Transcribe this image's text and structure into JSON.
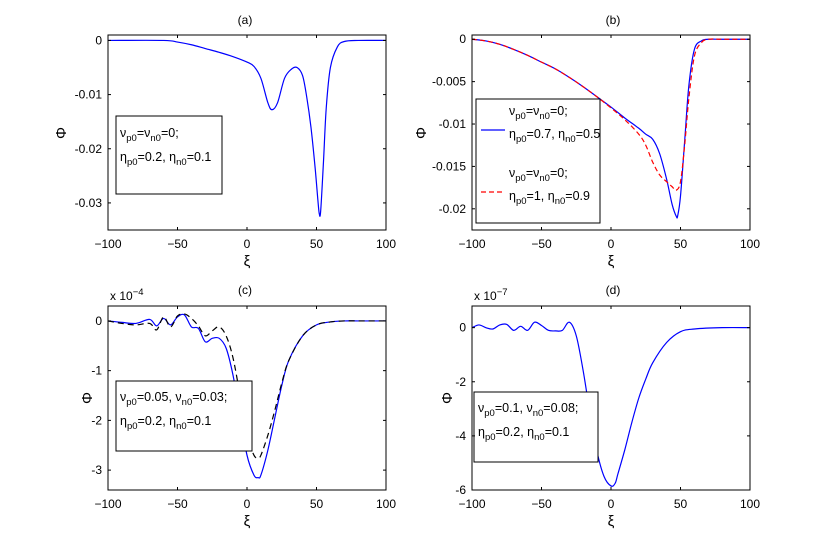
{
  "chart_data": [
    {
      "type": "line",
      "title": "(a)",
      "xlabel": "ξ",
      "ylabel": "Φ",
      "exponent": null,
      "xlim": [
        -100,
        100
      ],
      "ylim": [
        -0.035,
        0.001
      ],
      "xticks": [
        -100,
        -50,
        0,
        50,
        100
      ],
      "xtick_labels": [
        "−100",
        "−50",
        "0",
        "50",
        "100"
      ],
      "yticks": [
        0,
        -0.01,
        -0.02,
        -0.03
      ],
      "ytick_labels": [
        "0",
        "-0.01",
        "-0.02",
        "-0.03"
      ],
      "grid": false,
      "legend": {
        "placement": "left",
        "groups": [
          {
            "color": "",
            "dash": "",
            "lines": [
              [
                "ν",
                "p0",
                "=ν",
                "n0",
                "=0;"
              ],
              [
                "η",
                "p0",
                "=0.2, η",
                "n0",
                "=0.1"
              ]
            ]
          }
        ]
      },
      "series": [
        {
          "color": "#0000ff",
          "dash": "",
          "x": [
            -100,
            -60,
            -50,
            -40,
            -30,
            -20,
            -10,
            0,
            5,
            10,
            15,
            18,
            22,
            27,
            32,
            36,
            40,
            43,
            46,
            49,
            51,
            52,
            53,
            55,
            57,
            60,
            65,
            70,
            80,
            100
          ],
          "y": [
            0,
            0,
            -0.0003,
            -0.0008,
            -0.0015,
            -0.0022,
            -0.003,
            -0.004,
            -0.0048,
            -0.007,
            -0.0115,
            -0.0128,
            -0.0115,
            -0.007,
            -0.0053,
            -0.005,
            -0.0065,
            -0.0105,
            -0.016,
            -0.0235,
            -0.0295,
            -0.032,
            -0.0315,
            -0.0225,
            -0.0125,
            -0.005,
            -0.0012,
            -0.0002,
            0,
            0
          ]
        }
      ]
    },
    {
      "type": "line",
      "title": "(b)",
      "xlabel": "ξ",
      "ylabel": "Φ",
      "exponent": null,
      "xlim": [
        -100,
        100
      ],
      "ylim": [
        -0.0225,
        0.0005
      ],
      "xticks": [
        -100,
        -50,
        0,
        50,
        100
      ],
      "xtick_labels": [
        "−100",
        "−50",
        "0",
        "50",
        "100"
      ],
      "yticks": [
        0,
        -0.005,
        -0.01,
        -0.015,
        -0.02
      ],
      "ytick_labels": [
        "0",
        "-0.005",
        "-0.01",
        "-0.015",
        "-0.02"
      ],
      "grid": false,
      "legend": {
        "placement": "left",
        "groups": [
          {
            "color": "#0000ff",
            "dash": "",
            "lines": [
              [
                "ν",
                "p0",
                "=ν",
                "n0",
                "=0;"
              ],
              [
                "η",
                "p0",
                "=0.7, η",
                "n0",
                "=0.5"
              ]
            ]
          },
          {
            "color": "#ff0000",
            "dash": "5,3",
            "lines": [
              [
                "ν",
                "p0",
                "=ν",
                "n0",
                "=0;"
              ],
              [
                "η",
                "p0",
                "=1, η",
                "n0",
                "=0.9"
              ]
            ]
          }
        ]
      },
      "series": [
        {
          "color": "#0000ff",
          "dash": "",
          "x": [
            -100,
            -90,
            -80,
            -70,
            -60,
            -50,
            -40,
            -30,
            -20,
            -10,
            0,
            10,
            20,
            25,
            30,
            35,
            40,
            44,
            47,
            48,
            50,
            53,
            56,
            60,
            65,
            70,
            80,
            100
          ],
          "y": [
            0,
            -0.0002,
            -0.0006,
            -0.0012,
            -0.0019,
            -0.0027,
            -0.0035,
            -0.0045,
            -0.0056,
            -0.0068,
            -0.008,
            -0.0093,
            -0.0105,
            -0.0112,
            -0.0118,
            -0.0135,
            -0.0165,
            -0.0195,
            -0.0209,
            -0.0208,
            -0.0185,
            -0.012,
            -0.0055,
            -0.0012,
            -0.0002,
            0,
            0,
            0
          ]
        },
        {
          "color": "#ff0000",
          "dash": "5,3",
          "x": [
            -100,
            -90,
            -80,
            -70,
            -60,
            -50,
            -40,
            -30,
            -20,
            -10,
            0,
            10,
            20,
            25,
            30,
            35,
            40,
            44,
            47,
            50,
            53,
            56,
            60,
            65,
            70,
            80,
            100
          ],
          "y": [
            0,
            -0.0002,
            -0.0006,
            -0.0012,
            -0.0019,
            -0.0027,
            -0.0035,
            -0.0045,
            -0.0056,
            -0.0068,
            -0.0081,
            -0.0095,
            -0.0112,
            -0.0125,
            -0.0145,
            -0.016,
            -0.0168,
            -0.0174,
            -0.0178,
            -0.0168,
            -0.0125,
            -0.007,
            -0.002,
            -0.0004,
            0,
            0,
            0
          ]
        }
      ]
    },
    {
      "type": "line",
      "title": "(c)",
      "xlabel": "ξ",
      "ylabel": "Φ",
      "exponent": "x 10",
      "exponent_power": "−4",
      "xlim": [
        -100,
        100
      ],
      "ylim": [
        -3.4,
        0.3
      ],
      "xticks": [
        -100,
        -50,
        0,
        50,
        100
      ],
      "xtick_labels": [
        "−100",
        "−50",
        "0",
        "50",
        "100"
      ],
      "yticks": [
        0,
        -1,
        -2,
        -3
      ],
      "ytick_labels": [
        "0",
        "-1",
        "-2",
        "-3"
      ],
      "grid": false,
      "legend": {
        "placement": "left",
        "groups": [
          {
            "color": "",
            "dash": "",
            "lines": [
              [
                "ν",
                "p0",
                "=0.05, ν",
                "n0",
                "=0.03;"
              ],
              [
                "η",
                "p0",
                "=0.2, η",
                "n0",
                "=0.1"
              ]
            ]
          }
        ]
      },
      "series": [
        {
          "color": "#0000ff",
          "dash": "",
          "x": [
            -100,
            -90,
            -80,
            -70,
            -65,
            -60,
            -55,
            -50,
            -45,
            -40,
            -35,
            -30,
            -25,
            -20,
            -15,
            -10,
            -5,
            0,
            5,
            8,
            10,
            15,
            20,
            25,
            30,
            40,
            50,
            60,
            70,
            80,
            100
          ],
          "y": [
            0,
            -0.03,
            -0.05,
            0.03,
            -0.1,
            0.05,
            -0.08,
            0.08,
            0.12,
            -0.12,
            -0.15,
            -0.42,
            -0.35,
            -0.35,
            -0.55,
            -1.1,
            -1.9,
            -2.7,
            -3.1,
            -3.15,
            -3.1,
            -2.6,
            -1.95,
            -1.3,
            -0.8,
            -0.3,
            -0.08,
            -0.02,
            0,
            0,
            0
          ]
        },
        {
          "color": "#000000",
          "dash": "6,4",
          "x": [
            -100,
            -90,
            -80,
            -70,
            -65,
            -60,
            -55,
            -50,
            -45,
            -40,
            -35,
            -30,
            -25,
            -20,
            -15,
            -10,
            -5,
            0,
            5,
            8,
            10,
            15,
            20,
            25,
            30,
            40,
            50,
            60,
            70,
            80,
            100
          ],
          "y": [
            0,
            -0.05,
            -0.08,
            -0.05,
            -0.18,
            0.08,
            -0.12,
            0.1,
            0.14,
            0.05,
            -0.1,
            -0.3,
            -0.2,
            -0.12,
            -0.3,
            -0.75,
            -1.5,
            -2.3,
            -2.7,
            -2.75,
            -2.7,
            -2.3,
            -1.8,
            -1.25,
            -0.8,
            -0.3,
            -0.08,
            -0.02,
            0,
            0,
            0
          ]
        }
      ]
    },
    {
      "type": "line",
      "title": "(d)",
      "xlabel": "ξ",
      "ylabel": "Φ",
      "exponent": "x 10",
      "exponent_power": "−7",
      "xlim": [
        -100,
        100
      ],
      "ylim": [
        -6,
        0.8
      ],
      "xticks": [
        -100,
        -50,
        0,
        50,
        100
      ],
      "xtick_labels": [
        "−100",
        "−50",
        "0",
        "50",
        "100"
      ],
      "yticks": [
        0,
        -2,
        -4,
        -6
      ],
      "ytick_labels": [
        "0",
        "-2",
        "-4",
        "-6"
      ],
      "grid": false,
      "legend": {
        "placement": "left",
        "groups": [
          {
            "color": "",
            "dash": "",
            "lines": [
              [
                "ν",
                "p0",
                "=0.1, ν",
                "n0",
                "=0.08;"
              ],
              [
                "η",
                "p0",
                "=0.2, η",
                "n0",
                "=0.1"
              ]
            ]
          }
        ]
      },
      "series": [
        {
          "color": "#0000ff",
          "dash": "",
          "x": [
            -100,
            -95,
            -90,
            -85,
            -80,
            -75,
            -70,
            -65,
            -60,
            -55,
            -50,
            -45,
            -40,
            -35,
            -30,
            -25,
            -20,
            -15,
            -10,
            -5,
            0,
            3,
            5,
            10,
            15,
            20,
            25,
            30,
            40,
            50,
            60,
            80,
            100
          ],
          "y": [
            0,
            0.1,
            0,
            -0.05,
            0.1,
            0.12,
            -0.1,
            0.05,
            -0.1,
            0.2,
            0.08,
            -0.1,
            -0.12,
            -0.1,
            0.2,
            -0.3,
            -1.6,
            -3.2,
            -4.6,
            -5.5,
            -5.85,
            -5.75,
            -5.4,
            -4.5,
            -3.5,
            -2.6,
            -1.9,
            -1.3,
            -0.55,
            -0.15,
            -0.05,
            0,
            0
          ]
        }
      ]
    }
  ]
}
